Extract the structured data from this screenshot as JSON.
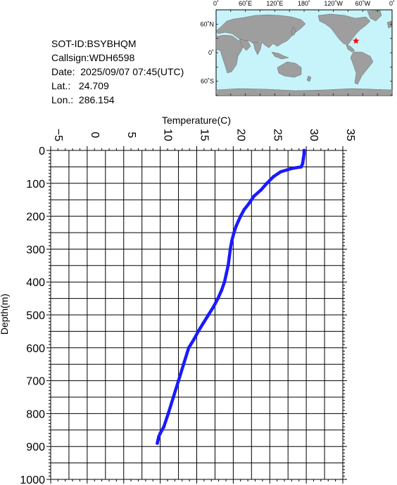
{
  "station": {
    "sot_id": "SOT-ID:BSYBHQM",
    "callsign": "Callsign:WDH6598",
    "date": "Date:  2025/09/07 07:45(UTC)",
    "lat": "Lat.:   24.709",
    "lon": "Lon.:  286.154"
  },
  "map": {
    "top_labels": [
      "0˚",
      "60˚E",
      "120˚E",
      "180˚",
      "120˚W",
      "60˚W",
      "0˚"
    ],
    "left_labels": [
      "60˚N",
      "0˚",
      "60˚S"
    ],
    "ocean_color": "#c6f4fa",
    "land_color": "#9e9e9e",
    "marker_color": "#ff0000",
    "marker_lon": 286.154,
    "marker_lat": 24.709
  },
  "chart_data": {
    "type": "line",
    "xlabel": "Temperature(C)",
    "ylabel": "Depth(m)",
    "xlim": [
      -5,
      35
    ],
    "ylim": [
      1000,
      0
    ],
    "xticks": [
      -5,
      0,
      5,
      10,
      15,
      20,
      25,
      30,
      35
    ],
    "yticks": [
      0,
      100,
      200,
      300,
      400,
      500,
      600,
      700,
      800,
      900,
      1000
    ],
    "grid": true,
    "line_color": "#1a1aff",
    "series": [
      {
        "x": [
          29.7,
          29.7,
          29.6,
          29.5,
          29.3,
          28.0,
          26.5,
          25.5,
          24.6,
          23.8,
          22.8,
          22.2,
          21.5,
          21.0,
          20.7,
          20.4,
          20.1,
          19.8,
          19.6,
          19.45,
          19.3,
          19.05,
          18.8,
          18.4,
          17.9,
          17.3,
          16.6,
          15.9,
          15.2,
          14.6,
          13.9,
          13.2,
          12.5,
          11.8,
          11.1,
          10.5,
          10.0,
          9.8,
          9.7,
          9.6
        ],
        "y": [
          0,
          10,
          25,
          40,
          50,
          55,
          65,
          80,
          100,
          120,
          140,
          160,
          180,
          200,
          215,
          230,
          250,
          275,
          300,
          325,
          350,
          375,
          400,
          425,
          450,
          475,
          500,
          525,
          550,
          575,
          600,
          650,
          700,
          750,
          800,
          840,
          860,
          870,
          880,
          890
        ]
      }
    ]
  }
}
